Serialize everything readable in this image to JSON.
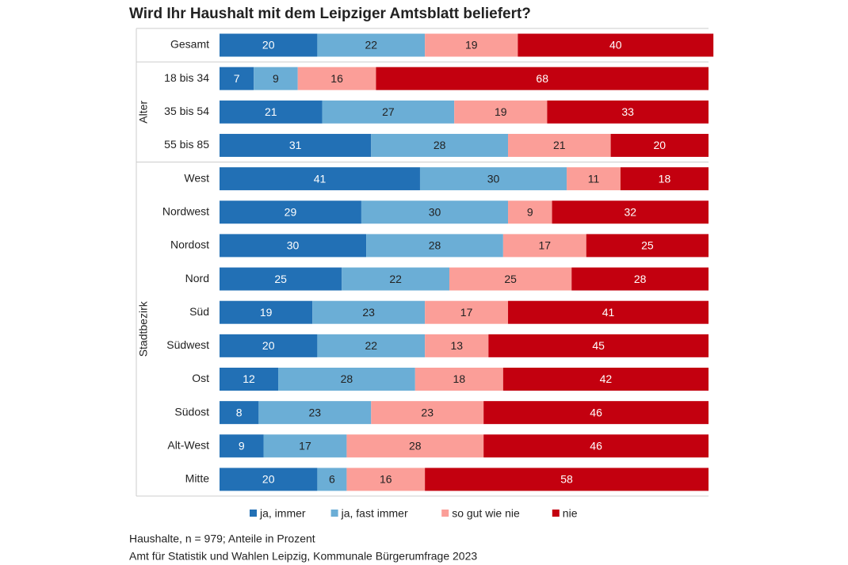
{
  "chart_data": {
    "type": "stacked_barh",
    "title": "Wird Ihr Haushalt mit dem Leipziger Amtsblatt beliefert?",
    "categories": [
      "Gesamt",
      "18 bis 34",
      "35 bis 54",
      "55 bis 85",
      "West",
      "Nordwest",
      "Nordost",
      "Nord",
      "Süd",
      "Südwest",
      "Ost",
      "Südost",
      "Alt-West",
      "Mitte"
    ],
    "category_groups": [
      null,
      "Alter",
      "Alter",
      "Alter",
      "Stadtbezirk",
      "Stadtbezirk",
      "Stadtbezirk",
      "Stadtbezirk",
      "Stadtbezirk",
      "Stadtbezirk",
      "Stadtbezirk",
      "Stadtbezirk",
      "Stadtbezirk",
      "Stadtbezirk"
    ],
    "xlim": [
      0,
      100
    ],
    "series": [
      {
        "name": "ja, immer",
        "color": "#2270b5",
        "label_color": "#ffffff",
        "values": [
          20,
          7,
          21,
          31,
          41,
          29,
          30,
          25,
          19,
          20,
          12,
          8,
          9,
          20
        ]
      },
      {
        "name": "ja, fast immer",
        "color": "#6baed6",
        "label_color": "#222222",
        "values": [
          22,
          9,
          27,
          28,
          30,
          30,
          28,
          22,
          23,
          22,
          28,
          23,
          17,
          6
        ]
      },
      {
        "name": "so gut wie nie",
        "color": "#fb9e98",
        "label_color": "#222222",
        "values": [
          19,
          16,
          19,
          21,
          11,
          9,
          17,
          25,
          17,
          13,
          18,
          23,
          28,
          16
        ]
      },
      {
        "name": "nie",
        "color": "#c3000f",
        "label_color": "#ffffff",
        "values": [
          40,
          68,
          33,
          20,
          18,
          32,
          25,
          28,
          41,
          45,
          42,
          46,
          46,
          58
        ]
      }
    ],
    "legend": "bottom",
    "notes": [
      "Haushalte, n = 979; Anteile in Prozent",
      "Amt für Statistik und Wahlen Leipzig, Kommunale Bürgerumfrage 2023"
    ]
  }
}
